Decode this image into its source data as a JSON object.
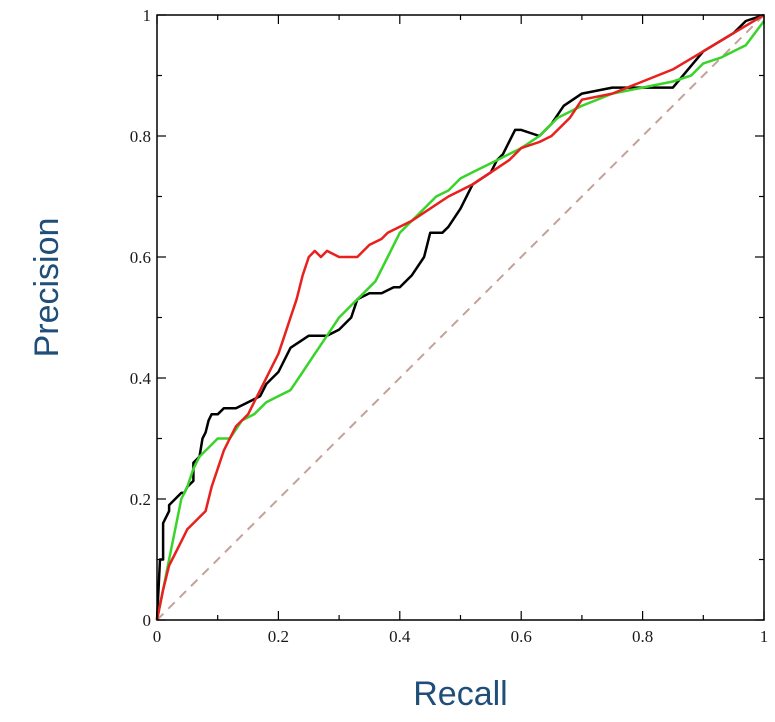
{
  "chart_data": {
    "type": "line",
    "title": "",
    "xlabel": "Recall",
    "ylabel": "Precision",
    "xlim": [
      0,
      1
    ],
    "ylim": [
      0,
      1
    ],
    "xticks": [
      0,
      0.2,
      0.4,
      0.6,
      0.8,
      1
    ],
    "yticks": [
      0,
      0.2,
      0.4,
      0.6,
      0.8,
      1
    ],
    "xtick_labels": [
      "0",
      "0.2",
      "0.4",
      "0.6",
      "0.8",
      "1"
    ],
    "ytick_labels": [
      "0",
      "0.2",
      "0.4",
      "0.6",
      "0.8",
      "1"
    ],
    "grid": false,
    "legend": "none",
    "colors": {
      "axis_title": "#1f4e79",
      "frame": "#000000"
    },
    "series": [
      {
        "color": "#000000",
        "style": "solid",
        "x": [
          0,
          0.005,
          0.01,
          0.01,
          0.02,
          0.02,
          0.03,
          0.04,
          0.045,
          0.05,
          0.06,
          0.06,
          0.07,
          0.075,
          0.08,
          0.085,
          0.09,
          0.1,
          0.11,
          0.13,
          0.15,
          0.17,
          0.18,
          0.19,
          0.2,
          0.22,
          0.25,
          0.28,
          0.3,
          0.32,
          0.33,
          0.35,
          0.37,
          0.39,
          0.4,
          0.42,
          0.44,
          0.45,
          0.46,
          0.47,
          0.48,
          0.5,
          0.52,
          0.55,
          0.56,
          0.57,
          0.59,
          0.6,
          0.63,
          0.65,
          0.67,
          0.7,
          0.75,
          0.8,
          0.85,
          0.9,
          0.95,
          0.97,
          1
        ],
        "y": [
          0,
          0.1,
          0.1,
          0.16,
          0.18,
          0.19,
          0.2,
          0.21,
          0.21,
          0.22,
          0.23,
          0.26,
          0.27,
          0.3,
          0.31,
          0.33,
          0.34,
          0.34,
          0.35,
          0.35,
          0.36,
          0.37,
          0.39,
          0.4,
          0.41,
          0.45,
          0.47,
          0.47,
          0.48,
          0.5,
          0.53,
          0.54,
          0.54,
          0.55,
          0.55,
          0.57,
          0.6,
          0.64,
          0.64,
          0.64,
          0.65,
          0.68,
          0.72,
          0.74,
          0.76,
          0.77,
          0.81,
          0.81,
          0.8,
          0.82,
          0.85,
          0.87,
          0.88,
          0.88,
          0.88,
          0.94,
          0.97,
          0.99,
          1
        ]
      },
      {
        "color": "#e8201e",
        "style": "solid",
        "x": [
          0,
          0.01,
          0.02,
          0.03,
          0.04,
          0.05,
          0.06,
          0.07,
          0.08,
          0.09,
          0.1,
          0.11,
          0.12,
          0.13,
          0.14,
          0.15,
          0.16,
          0.17,
          0.18,
          0.19,
          0.2,
          0.21,
          0.22,
          0.23,
          0.24,
          0.25,
          0.26,
          0.27,
          0.28,
          0.3,
          0.33,
          0.35,
          0.37,
          0.38,
          0.4,
          0.42,
          0.45,
          0.48,
          0.5,
          0.52,
          0.55,
          0.58,
          0.6,
          0.63,
          0.65,
          0.68,
          0.7,
          0.75,
          0.8,
          0.85,
          0.9,
          0.95,
          1
        ],
        "y": [
          0,
          0.05,
          0.09,
          0.11,
          0.13,
          0.15,
          0.16,
          0.17,
          0.18,
          0.22,
          0.25,
          0.28,
          0.3,
          0.32,
          0.33,
          0.34,
          0.36,
          0.38,
          0.4,
          0.42,
          0.44,
          0.47,
          0.5,
          0.53,
          0.57,
          0.6,
          0.61,
          0.6,
          0.61,
          0.6,
          0.6,
          0.62,
          0.63,
          0.64,
          0.65,
          0.66,
          0.68,
          0.7,
          0.71,
          0.72,
          0.74,
          0.76,
          0.78,
          0.79,
          0.8,
          0.83,
          0.86,
          0.87,
          0.89,
          0.91,
          0.94,
          0.97,
          1
        ]
      },
      {
        "color": "#38d428",
        "style": "solid",
        "x": [
          0,
          0.01,
          0.02,
          0.03,
          0.04,
          0.05,
          0.06,
          0.07,
          0.08,
          0.1,
          0.12,
          0.14,
          0.16,
          0.18,
          0.2,
          0.22,
          0.24,
          0.26,
          0.28,
          0.3,
          0.32,
          0.34,
          0.36,
          0.38,
          0.4,
          0.42,
          0.44,
          0.46,
          0.48,
          0.5,
          0.52,
          0.54,
          0.56,
          0.58,
          0.6,
          0.63,
          0.66,
          0.7,
          0.75,
          0.8,
          0.85,
          0.88,
          0.9,
          0.93,
          0.95,
          0.97,
          1
        ],
        "y": [
          0,
          0.05,
          0.1,
          0.15,
          0.2,
          0.22,
          0.25,
          0.27,
          0.28,
          0.3,
          0.3,
          0.33,
          0.34,
          0.36,
          0.37,
          0.38,
          0.41,
          0.44,
          0.47,
          0.5,
          0.52,
          0.54,
          0.56,
          0.6,
          0.64,
          0.66,
          0.68,
          0.7,
          0.71,
          0.73,
          0.74,
          0.75,
          0.76,
          0.77,
          0.78,
          0.8,
          0.83,
          0.85,
          0.87,
          0.88,
          0.89,
          0.9,
          0.92,
          0.93,
          0.94,
          0.95,
          0.99
        ]
      },
      {
        "color": "#c4a19a",
        "style": "dashed",
        "x": [
          0,
          1
        ],
        "y": [
          0,
          1
        ]
      }
    ]
  }
}
